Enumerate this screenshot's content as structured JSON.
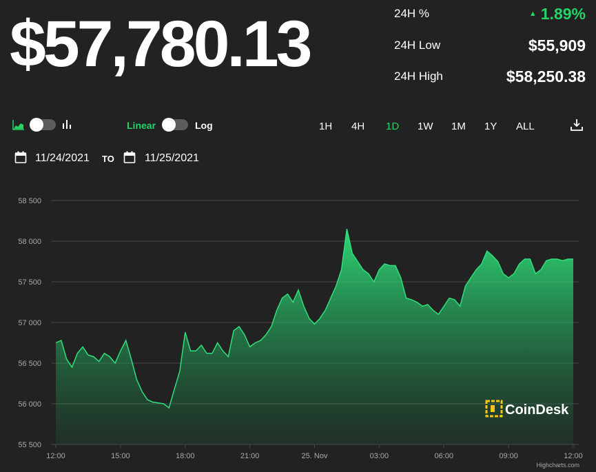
{
  "price": "$57,780.13",
  "stats": [
    {
      "label": "24H %",
      "value": "1.89%",
      "trend": "up"
    },
    {
      "label": "24H Low",
      "value": "$55,909",
      "trend": ""
    },
    {
      "label": "24H High",
      "value": "$58,250.38",
      "trend": ""
    }
  ],
  "controls": {
    "chart_type_icons": [
      "area-chart-icon",
      "bar-chart-icon"
    ],
    "scale_linear": "Linear",
    "scale_log": "Log",
    "ranges": [
      "1H",
      "4H",
      "1D",
      "1W",
      "1M",
      "1Y",
      "ALL"
    ],
    "active_range": "1D",
    "download_icon": "download-icon"
  },
  "date_range": {
    "from": "11/24/2021",
    "to_label": "TO",
    "to": "11/25/2021"
  },
  "colors": {
    "background": "#222222",
    "accent": "#25d366",
    "line": "#2fe07b",
    "grid": "#4a4a4a"
  },
  "watermark": "CoinDesk",
  "credits": "Highcharts.com",
  "chart_data": {
    "type": "area",
    "y_ticks": [
      "58 500",
      "58 000",
      "57 500",
      "57 000",
      "56 500",
      "56 000",
      "55 500"
    ],
    "y_tick_values": [
      58500,
      58000,
      57500,
      57000,
      56500,
      56000,
      55500
    ],
    "x_ticks": [
      "12:00",
      "15:00",
      "18:00",
      "21:00",
      "25. Nov",
      "03:00",
      "06:00",
      "09:00",
      "12:00"
    ],
    "ylim": [
      55500,
      58500
    ],
    "grid": true,
    "legend": "none",
    "series": [
      {
        "x_hours": [
          0,
          0.25,
          0.5,
          0.75,
          1,
          1.25,
          1.5,
          1.75,
          2,
          2.25,
          2.5,
          2.75,
          3,
          3.25,
          3.5,
          3.75,
          4,
          4.25,
          4.5,
          4.75,
          5,
          5.25,
          5.5,
          5.75,
          6,
          6.25,
          6.5,
          6.75,
          7,
          7.25,
          7.5,
          7.75,
          8,
          8.25,
          8.5,
          8.75,
          9,
          9.25,
          9.5,
          9.75,
          10,
          10.25,
          10.5,
          10.75,
          11,
          11.25,
          11.5,
          11.75,
          12,
          12.25,
          12.5,
          12.75,
          13,
          13.25,
          13.5,
          13.75,
          14,
          14.25,
          14.5,
          14.75,
          15,
          15.25,
          15.5,
          15.75,
          16,
          16.25,
          16.5,
          16.75,
          17,
          17.25,
          17.5,
          17.75,
          18,
          18.25,
          18.5,
          18.75,
          19,
          19.25,
          19.5,
          19.75,
          20,
          20.25,
          20.5,
          20.75,
          21,
          21.25,
          21.5,
          21.75,
          22,
          22.25,
          22.5,
          22.75,
          23,
          23.25,
          23.5,
          23.75,
          24
        ],
        "values": [
          56750,
          56780,
          56550,
          56450,
          56620,
          56700,
          56600,
          56580,
          56520,
          56620,
          56580,
          56500,
          56650,
          56780,
          56550,
          56300,
          56150,
          56050,
          56020,
          56010,
          56000,
          55950,
          56180,
          56400,
          56880,
          56650,
          56650,
          56720,
          56620,
          56620,
          56750,
          56650,
          56580,
          56900,
          56950,
          56850,
          56700,
          56750,
          56780,
          56850,
          56950,
          57150,
          57300,
          57350,
          57250,
          57400,
          57200,
          57050,
          56980,
          57050,
          57150,
          57300,
          57450,
          57650,
          58150,
          57850,
          57750,
          57650,
          57600,
          57500,
          57650,
          57720,
          57700,
          57700,
          57550,
          57300,
          57280,
          57250,
          57200,
          57220,
          57150,
          57100,
          57200,
          57300,
          57280,
          57200,
          57450,
          57550,
          57650,
          57720,
          57880,
          57820,
          57750,
          57600,
          57550,
          57600,
          57720,
          57780,
          57780,
          57600,
          57650,
          57760,
          57780,
          57780,
          57760,
          57780,
          57780
        ]
      }
    ]
  }
}
